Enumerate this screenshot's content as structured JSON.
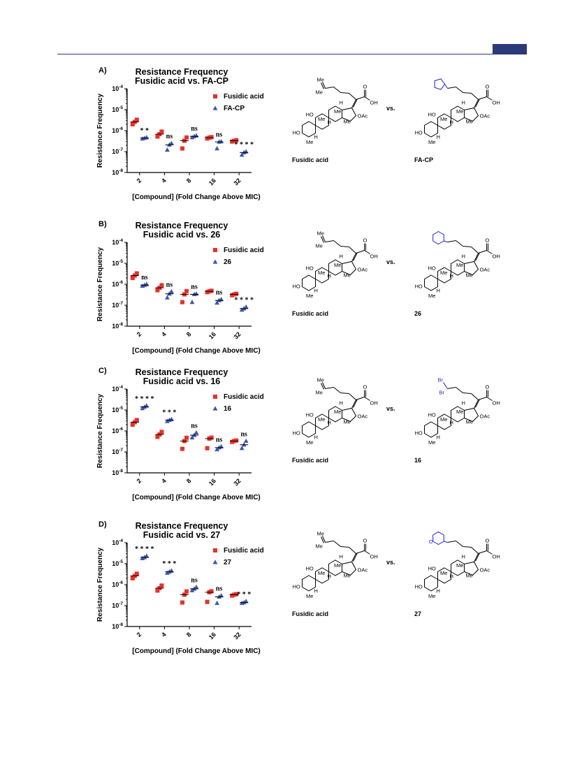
{
  "page": {
    "header_color": "#2b3a7a"
  },
  "colors": {
    "fusidic": "#e8312a",
    "analog": "#3a56b0",
    "highlight": "#1f1fd6"
  },
  "icons": {
    "fusidic_marker": "square-marker",
    "analog_marker": "triangle-marker"
  },
  "chem_labels": {
    "me": "Me",
    "ho": "HO",
    "h": "H",
    "oh": "OH",
    "oac": "OAc",
    "o": "O",
    "br": "Br",
    "vs": "vs."
  },
  "panels": [
    {
      "letter": "A)",
      "title_lines": [
        "Resistance Frequency",
        "Fusidic acid vs. FA-CP"
      ],
      "reference_name": "Fusidic acid",
      "analog_name": "FA-CP",
      "analog_group": "cyclopentylidene",
      "chart_data": {
        "type": "scatter",
        "x_categories": [
          "2",
          "4",
          "8",
          "16",
          "32"
        ],
        "xlabel": "[Compound] (Fold Change Above MIC)",
        "ylabel": "Resistance Frequency",
        "yscale": "log",
        "ylim": [
          1e-08,
          0.0001
        ],
        "y_ticks": [
          {
            "value": 0.0001,
            "base": "10",
            "exp": "-4"
          },
          {
            "value": 1e-05,
            "base": "10",
            "exp": "-5"
          },
          {
            "value": 1e-06,
            "base": "10",
            "exp": "-6"
          },
          {
            "value": 1e-07,
            "base": "10",
            "exp": "-7"
          },
          {
            "value": 1e-08,
            "base": "10",
            "exp": "-8"
          }
        ],
        "legend_position": "top-right",
        "series": [
          {
            "name": "Fusidic acid",
            "marker": "square",
            "color": "#e8312a",
            "points": [
              [
                2e-06,
                2.6e-06,
                3.3e-06
              ],
              [
                5.2e-07,
                6.8e-07,
                9e-07
              ],
              [
                1.4e-07,
                3.3e-07,
                4.7e-07
              ],
              [
                4.2e-07,
                4.6e-07,
                4.9e-07
              ],
              [
                3e-07,
                3.3e-07,
                3.5e-07
              ]
            ],
            "medians": [
              2.6e-06,
              6.8e-07,
              3.3e-07,
              4.6e-07,
              3.3e-07
            ]
          },
          {
            "name": "FA-CP",
            "marker": "triangle",
            "color": "#3a56b0",
            "points": [
              [
                4.1e-07,
                4.4e-07,
                4.7e-07
              ],
              [
                1.2e-07,
                2.1e-07,
                2.5e-07
              ],
              [
                4.7e-07,
                5.3e-07,
                5.8e-07
              ],
              [
                1.4e-07,
                2.9e-07,
                3e-07
              ],
              [
                6.9e-08,
                9e-08,
                1e-07
              ]
            ],
            "medians": [
              4.4e-07,
              2.1e-07,
              5.3e-07,
              2.9e-07,
              9e-08
            ]
          }
        ],
        "significance": [
          "* *",
          "ns",
          "ns",
          "ns",
          "* * * *"
        ]
      }
    },
    {
      "letter": "B)",
      "title_lines": [
        "Resistance Frequency",
        "Fusidic acid vs. 26"
      ],
      "reference_name": "Fusidic acid",
      "analog_name": "26",
      "analog_group": "cyclohexylidene",
      "chart_data": {
        "type": "scatter",
        "x_categories": [
          "2",
          "4",
          "8",
          "16",
          "32"
        ],
        "xlabel": "[Compound] (Fold Change Above MIC)",
        "ylabel": "Resistance Frequency",
        "yscale": "log",
        "ylim": [
          1e-08,
          0.0001
        ],
        "y_ticks": [
          {
            "value": 0.0001,
            "base": "10",
            "exp": "-4"
          },
          {
            "value": 1e-05,
            "base": "10",
            "exp": "-5"
          },
          {
            "value": 1e-06,
            "base": "10",
            "exp": "-6"
          },
          {
            "value": 1e-07,
            "base": "10",
            "exp": "-7"
          },
          {
            "value": 1e-08,
            "base": "10",
            "exp": "-8"
          }
        ],
        "legend_position": "top-right",
        "series": [
          {
            "name": "Fusidic acid",
            "marker": "square",
            "color": "#e8312a",
            "points": [
              [
                2e-06,
                2.6e-06,
                3.3e-06
              ],
              [
                5.2e-07,
                6.8e-07,
                9e-07
              ],
              [
                1.4e-07,
                3.3e-07,
                4.7e-07
              ],
              [
                4.2e-07,
                4.6e-07,
                4.9e-07
              ],
              [
                3e-07,
                3.3e-07,
                3.5e-07
              ]
            ],
            "medians": [
              2.6e-06,
              6.8e-07,
              3.3e-07,
              4.6e-07,
              3.3e-07
            ]
          },
          {
            "name": "26",
            "marker": "triangle",
            "color": "#3a56b0",
            "points": [
              [
                8.3e-07,
                9.1e-07,
                1e-06
              ],
              [
                2.3e-07,
                3.5e-07,
                4.5e-07
              ],
              [
                1.4e-07,
                3.3e-07,
                3.5e-07
              ],
              [
                1.3e-07,
                1.7e-07,
                1.9e-07
              ],
              [
                6e-08,
                6.9e-08,
                8.3e-08
              ]
            ],
            "medians": [
              9.1e-07,
              3.5e-07,
              3.3e-07,
              1.7e-07,
              6.9e-08
            ]
          }
        ],
        "significance": [
          "ns",
          "ns",
          "ns",
          "ns",
          "* * * *"
        ]
      }
    },
    {
      "letter": "C)",
      "title_lines": [
        "Resistance Frequency",
        "Fusidic acid vs. 16"
      ],
      "reference_name": "Fusidic acid",
      "analog_name": "16",
      "analog_group": "dibromovinylidene",
      "chart_data": {
        "type": "scatter",
        "x_categories": [
          "2",
          "4",
          "8",
          "16",
          "32"
        ],
        "xlabel": "[Compound] (Fold Change Above MIC)",
        "ylabel": "Resistance Frequency",
        "yscale": "log",
        "ylim": [
          1e-08,
          0.0001
        ],
        "y_ticks": [
          {
            "value": 0.0001,
            "base": "10",
            "exp": "-4"
          },
          {
            "value": 1e-05,
            "base": "10",
            "exp": "-5"
          },
          {
            "value": 1e-06,
            "base": "10",
            "exp": "-6"
          },
          {
            "value": 1e-07,
            "base": "10",
            "exp": "-7"
          },
          {
            "value": 1e-08,
            "base": "10",
            "exp": "-8"
          }
        ],
        "legend_position": "top-right",
        "series": [
          {
            "name": "Fusidic acid",
            "marker": "square",
            "color": "#e8312a",
            "points": [
              [
                2e-06,
                2.6e-06,
                3.3e-06
              ],
              [
                5.2e-07,
                6.8e-07,
                9e-07
              ],
              [
                1.4e-07,
                3.3e-07,
                4.7e-07
              ],
              [
                1.5e-07,
                4.3e-07,
                4.8e-07
              ],
              [
                3e-07,
                3.3e-07,
                3.5e-07
              ]
            ],
            "medians": [
              2.6e-06,
              6.8e-07,
              3.3e-07,
              4.3e-07,
              3.3e-07
            ]
          },
          {
            "name": "16",
            "marker": "triangle",
            "color": "#3a56b0",
            "points": [
              [
                1.2e-05,
                1.4e-05,
                1.6e-05
              ],
              [
                2.9e-06,
                3.3e-06,
                3.6e-06
              ],
              [
                4.8e-07,
                6.3e-07,
                8.3e-07
              ],
              [
                1.3e-07,
                1.6e-07,
                1.8e-07
              ],
              [
                1.5e-07,
                2.2e-07,
                3.3e-07
              ]
            ],
            "medians": [
              1.4e-05,
              3.3e-06,
              6.3e-07,
              1.6e-07,
              2.2e-07
            ]
          }
        ],
        "significance": [
          "* * * *",
          "* * *",
          "ns",
          "ns",
          "ns"
        ]
      }
    },
    {
      "letter": "D)",
      "title_lines": [
        "Resistance Frequency",
        "Fusidic acid vs. 27"
      ],
      "reference_name": "Fusidic acid",
      "analog_name": "27",
      "analog_group": "tetrahydropyranylidene",
      "chart_data": {
        "type": "scatter",
        "x_categories": [
          "2",
          "4",
          "8",
          "16",
          "32"
        ],
        "xlabel": "[Compound] (Fold Change Above MIC)",
        "ylabel": "Resistance Frequency",
        "yscale": "log",
        "ylim": [
          1e-08,
          0.0001
        ],
        "y_ticks": [
          {
            "value": 0.0001,
            "base": "10",
            "exp": "-4"
          },
          {
            "value": 1e-05,
            "base": "10",
            "exp": "-5"
          },
          {
            "value": 1e-06,
            "base": "10",
            "exp": "-6"
          },
          {
            "value": 1e-07,
            "base": "10",
            "exp": "-7"
          },
          {
            "value": 1e-08,
            "base": "10",
            "exp": "-8"
          }
        ],
        "legend_position": "top-right",
        "series": [
          {
            "name": "Fusidic acid",
            "marker": "square",
            "color": "#e8312a",
            "points": [
              [
                2e-06,
                2.6e-06,
                3.3e-06
              ],
              [
                5.2e-07,
                6.8e-07,
                9e-07
              ],
              [
                1.4e-07,
                3.3e-07,
                4.7e-07
              ],
              [
                1.5e-07,
                4.3e-07,
                4.8e-07
              ],
              [
                3e-07,
                3.3e-07,
                3.5e-07
              ]
            ],
            "medians": [
              2.6e-06,
              6.8e-07,
              3.3e-07,
              4.3e-07,
              3.3e-07
            ]
          },
          {
            "name": "27",
            "marker": "triangle",
            "color": "#3a56b0",
            "points": [
              [
                1.8e-05,
                2e-05,
                2.3e-05
              ],
              [
                3.6e-06,
                4.1e-06,
                4.6e-06
              ],
              [
                5.3e-07,
                6.3e-07,
                7.6e-07
              ],
              [
                1.3e-07,
                2.6e-07,
                3e-07
              ],
              [
                1.3e-07,
                1.4e-07,
                1.6e-07
              ]
            ],
            "medians": [
              2e-05,
              4.1e-06,
              6.3e-07,
              2.6e-07,
              1.4e-07
            ]
          }
        ],
        "significance": [
          "* * * *",
          "* * *",
          "ns",
          "ns",
          "* * *"
        ]
      }
    }
  ]
}
